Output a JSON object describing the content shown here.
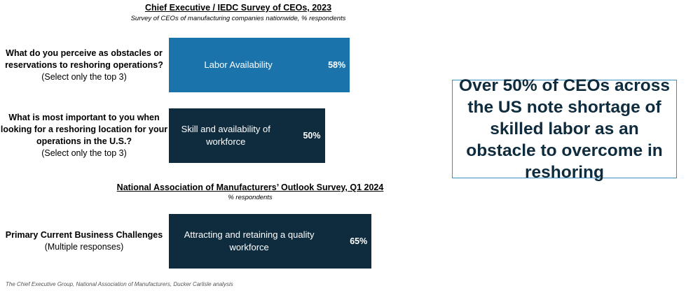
{
  "chart_data": [
    {
      "type": "bar",
      "orientation": "horizontal",
      "title": "Chief Executive / IEDC Survey of CEOs, 2023",
      "subtitle": "Survey of CEOs of manufacturing companies nationwide, % respondents",
      "categories": [
        "What do you perceive as obstacles or reservations to reshoring operations?",
        "What is most important to you when looking for a reshoring location for your operations in the U.S.?"
      ],
      "category_notes": [
        "(Select only the top 3)",
        "(Select only the top 3)"
      ],
      "bar_labels": [
        "Labor Availability",
        "Skill and availability of workforce"
      ],
      "values": [
        58,
        50
      ],
      "value_labels": [
        "58%",
        "50%"
      ],
      "colors": [
        "#1a73ab",
        "#0f2c3e"
      ]
    },
    {
      "type": "bar",
      "orientation": "horizontal",
      "title": "National Association of Manufacturers’ Outlook Survey, Q1 2024",
      "subtitle": "% respondents",
      "categories": [
        "Primary Current Business Challenges"
      ],
      "category_notes": [
        "(Multiple responses)"
      ],
      "bar_labels": [
        "Attracting and retaining a quality workforce"
      ],
      "values": [
        65
      ],
      "value_labels": [
        "65%"
      ],
      "colors": [
        "#0f2c3e"
      ]
    }
  ],
  "callout": "Over 50% of CEOs across the US note shortage of skilled labor as an obstacle to overcome in reshoring",
  "source": "The Chief Executive Group, National Association of Manufacturers, Ducker Carlisle analysis"
}
